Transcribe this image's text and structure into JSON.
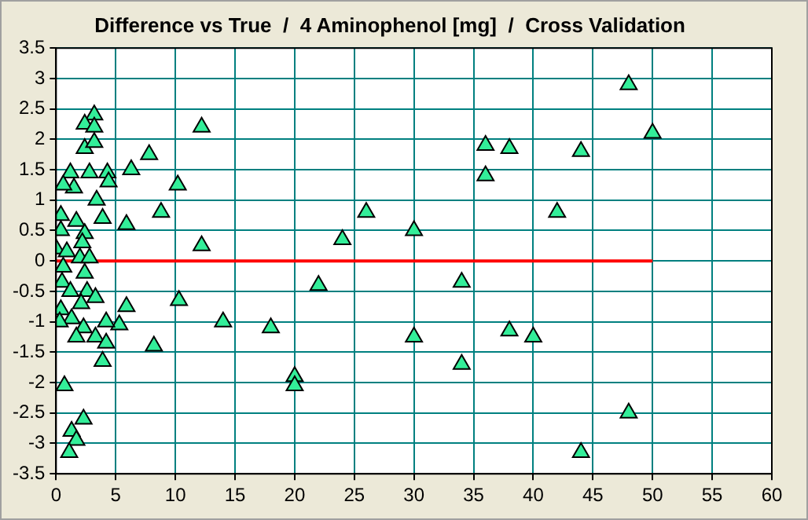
{
  "chart_data": {
    "type": "scatter",
    "title": "Difference vs True  /  4 Aminophenol [mg]  /  Cross Validation",
    "xlim": [
      0,
      60
    ],
    "xticks": [
      0,
      5,
      10,
      15,
      20,
      25,
      30,
      35,
      40,
      45,
      50,
      55,
      60
    ],
    "ylim": [
      -3.5,
      3.5
    ],
    "yticks": [
      -3.5,
      -3,
      -2.5,
      -2,
      -1.5,
      -1,
      -0.5,
      0,
      0.5,
      1,
      1.5,
      2,
      2.5,
      3,
      3.5
    ],
    "grid": true,
    "marker": "triangle",
    "series": [
      {
        "color": "#33ee99",
        "x": [
          48,
          50,
          44,
          42,
          48,
          44,
          40,
          38,
          38,
          36,
          36,
          34,
          34,
          30,
          30,
          26,
          24,
          22,
          20,
          20,
          18,
          14,
          12.2,
          12.2,
          10.2,
          10.3,
          8.2,
          7.8,
          8.8,
          6.3,
          5.9,
          5.9,
          5.3,
          3.2,
          2.4,
          3.2,
          2.4,
          3.2,
          1.2,
          2.8,
          4.3,
          4.4,
          1.5,
          0.6,
          3.4,
          0.4,
          1.7,
          3.9,
          2.4,
          0.4,
          2.2,
          0,
          0.9,
          2.0,
          2.8,
          0.6,
          2.4,
          0.5,
          1.2,
          2.6,
          2.1,
          3.3,
          0.4,
          1.3,
          0.3,
          4.2,
          2.3,
          1.7,
          3.3,
          4.2,
          3.9,
          0.7,
          2.3,
          1.3,
          1.7,
          1.1
        ],
        "values": [
          2.9,
          2.1,
          1.8,
          0.8,
          -2.5,
          -3.15,
          -1.25,
          -1.15,
          1.85,
          1.9,
          1.4,
          -0.35,
          -1.7,
          0.5,
          -1.25,
          0.8,
          0.35,
          -0.4,
          -1.9,
          -2.05,
          -1.1,
          -1.0,
          2.2,
          0.25,
          1.25,
          -0.65,
          -1.4,
          1.75,
          0.8,
          1.5,
          0.6,
          -0.75,
          -1.05,
          2.4,
          2.25,
          2.2,
          1.85,
          1.95,
          1.45,
          1.45,
          1.45,
          1.3,
          1.2,
          1.25,
          1.0,
          0.75,
          0.65,
          0.7,
          0.45,
          0.5,
          0.3,
          0.2,
          0.15,
          0.05,
          0.05,
          -0.1,
          -0.2,
          -0.35,
          -0.5,
          -0.5,
          -0.7,
          -0.6,
          -0.8,
          -0.95,
          -1.0,
          -1.0,
          -1.1,
          -1.25,
          -1.25,
          -1.35,
          -1.65,
          -2.05,
          -2.6,
          -2.8,
          -2.95,
          -3.15
        ]
      },
      {
        "type": "line",
        "color": "#ff0000",
        "marker": "none",
        "x": [
          0,
          50
        ],
        "values": [
          0,
          0
        ]
      }
    ]
  }
}
